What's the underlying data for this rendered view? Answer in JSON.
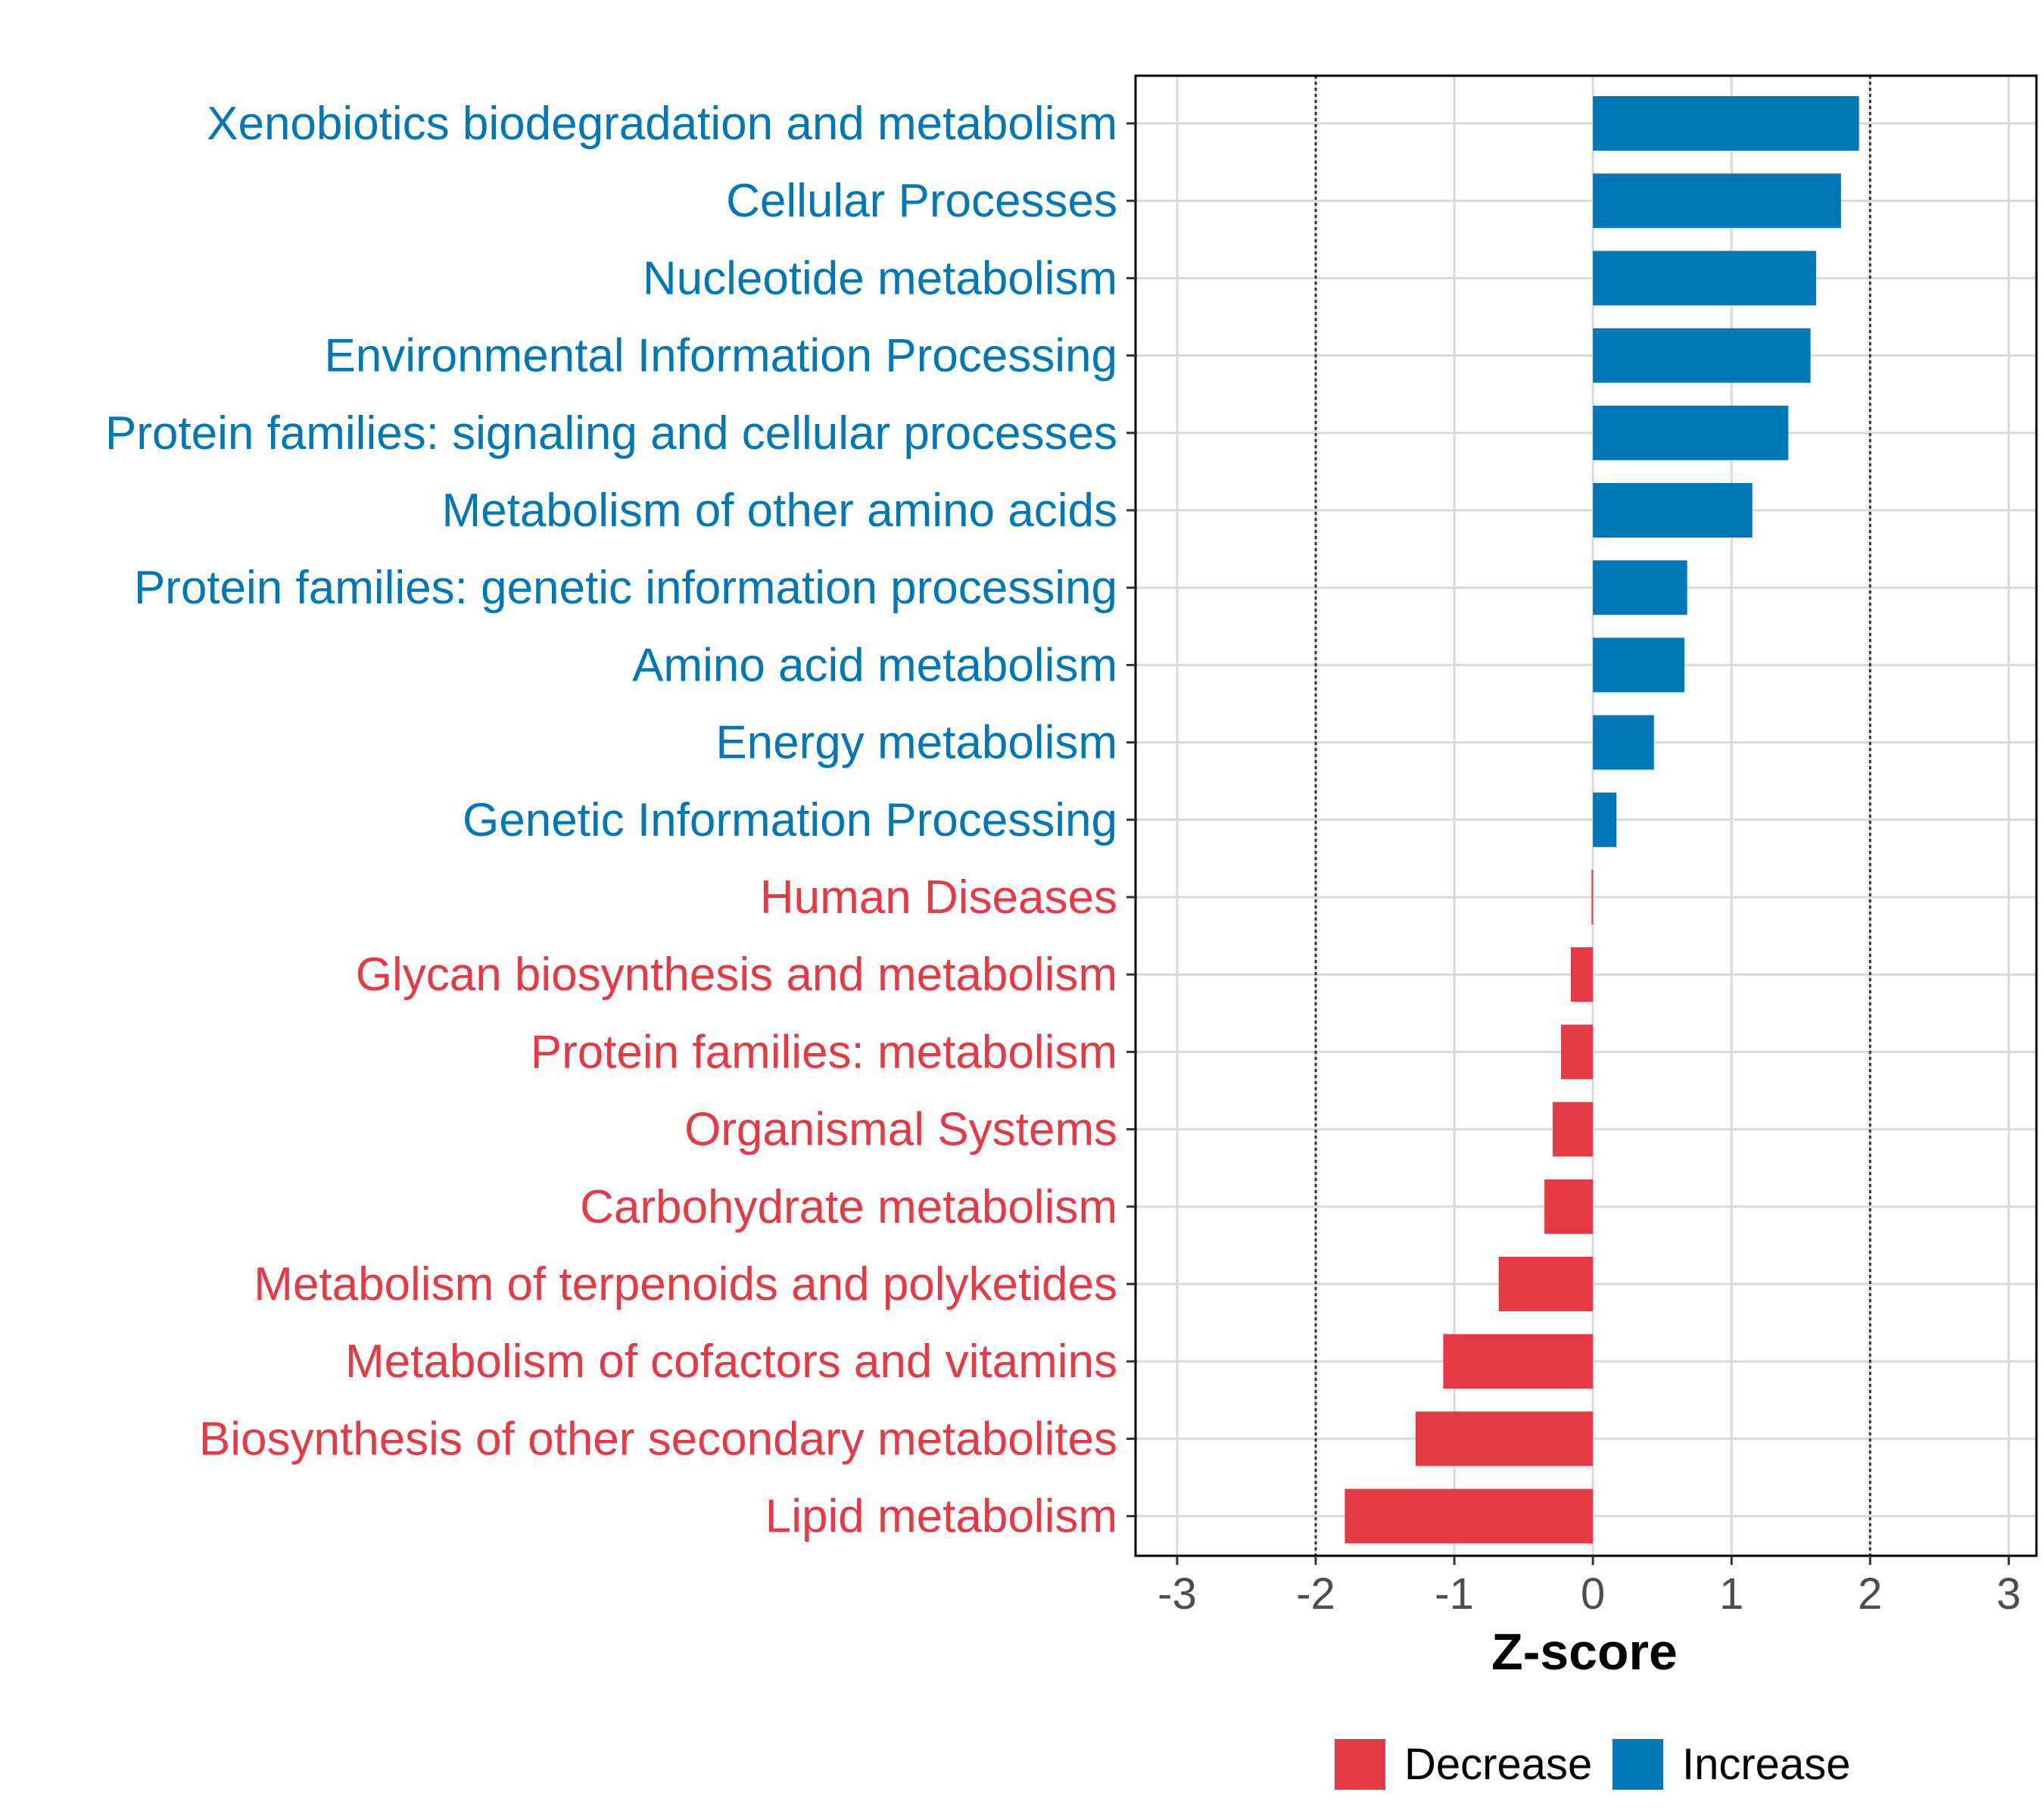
{
  "chart_data": {
    "type": "bar",
    "orientation": "horizontal",
    "xlabel": "Z-score",
    "ylabel": "",
    "xlim": [
      -3.3,
      3.2
    ],
    "x_ticks": [
      -3,
      -2,
      -1,
      0,
      1,
      2,
      3
    ],
    "x_tick_labels": [
      "-3",
      "-2",
      "-1",
      "0",
      "1",
      "2",
      "3"
    ],
    "reference_lines": [
      -2,
      2
    ],
    "grid": true,
    "legend_position": "bottom",
    "colors": {
      "Decrease": "#E63946",
      "Increase": "#0077B6"
    },
    "legend": [
      {
        "key": "Decrease",
        "label": "Decrease"
      },
      {
        "key": "Increase",
        "label": "Increase"
      }
    ],
    "categories": [
      "Xenobiotics biodegradation and metabolism",
      "Cellular Processes",
      "Nucleotide metabolism",
      "Environmental Information Processing",
      "Protein families: signaling and cellular processes",
      "Metabolism of other amino acids",
      "Protein families: genetic information processing",
      "Amino acid metabolism",
      "Energy metabolism",
      "Genetic Information Processing",
      "Human Diseases",
      "Glycan biosynthesis and metabolism",
      "Protein families: metabolism",
      "Organismal Systems",
      "Carbohydrate metabolism",
      "Metabolism of terpenoids and polyketides",
      "Metabolism of cofactors and vitamins",
      "Biosynthesis of other secondary metabolites",
      "Lipid metabolism"
    ],
    "values": [
      1.92,
      1.79,
      1.61,
      1.57,
      1.41,
      1.15,
      0.68,
      0.66,
      0.44,
      0.17,
      -0.01,
      -0.16,
      -0.23,
      -0.29,
      -0.35,
      -0.68,
      -1.08,
      -1.28,
      -1.79
    ],
    "groups": [
      "Increase",
      "Increase",
      "Increase",
      "Increase",
      "Increase",
      "Increase",
      "Increase",
      "Increase",
      "Increase",
      "Increase",
      "Decrease",
      "Decrease",
      "Decrease",
      "Decrease",
      "Decrease",
      "Decrease",
      "Decrease",
      "Decrease",
      "Decrease"
    ]
  }
}
